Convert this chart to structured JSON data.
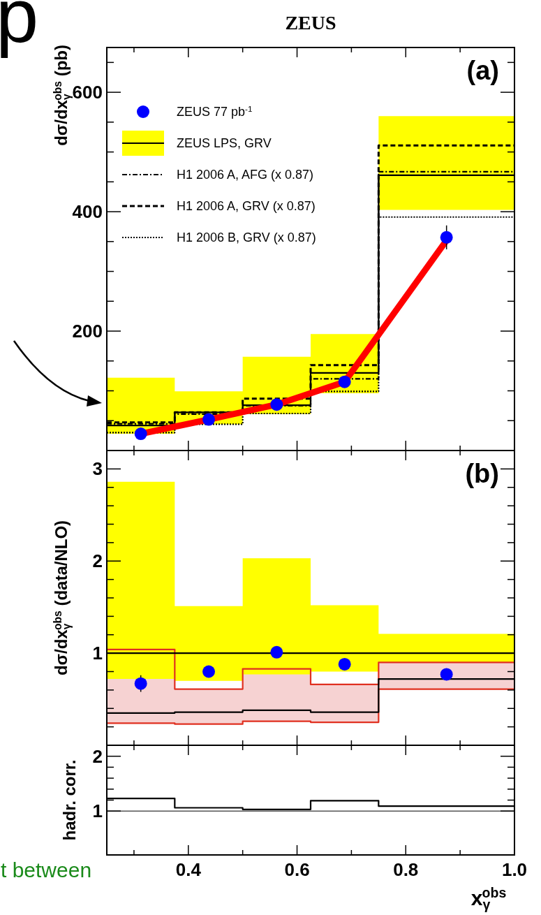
{
  "chart_data": [
    {
      "type": "step",
      "title": "ZEUS",
      "ylabel": "dσ/dx$_{γ}$$^{obs}$ (pb)",
      "xlim": [
        0.25,
        1.0
      ],
      "xticks": [
        {
          "value": 0.3,
          "label": null
        },
        0.4,
        {
          "value": 0.5,
          "label": null
        },
        0.6,
        {
          "value": 0.7,
          "label": null
        },
        0.8,
        {
          "value": 0.9,
          "label": null
        },
        1
      ],
      "ylim": [
        0,
        675
      ],
      "yticks": [
        {
          "value": 50,
          "label": null
        },
        {
          "value": 100,
          "label": null
        },
        {
          "value": 150,
          "label": null
        },
        200,
        {
          "value": 250,
          "label": null
        },
        {
          "value": 300,
          "label": null
        },
        {
          "value": 350,
          "label": null
        },
        400,
        {
          "value": 450,
          "label": null
        },
        {
          "value": 500,
          "label": null
        },
        {
          "value": 550,
          "label": null
        },
        600,
        {
          "value": 650,
          "label": null
        }
      ],
      "tick_labels": "y",
      "legend": "top left",
      "annotations": [
        "(a)",
        "p",
        "t between"
      ],
      "series": [
        {
          "type": "scatter",
          "name": "ZEUS 77 pb$^{-1}$",
          "color": "#0000ff",
          "marker": "circle",
          "x": [
            0.3125,
            0.4375,
            0.5625,
            0.6875,
            0.875
          ],
          "values": [
            28,
            52,
            77,
            115,
            357
          ],
          "errors": [
            null,
            null,
            null,
            null,
            20
          ]
        },
        {
          "type": "area",
          "color": "#ffff00",
          "x": [
            0.25,
            0.375,
            0.5,
            0.625,
            0.75,
            1.0
          ],
          "values": [
            null,
            null,
            null,
            null,
            null,
            null
          ],
          "lower": [
            28,
            44,
            61,
            96,
            403,
            403
          ],
          "upper": [
            122,
            99,
            157,
            195,
            560,
            560
          ]
        },
        {
          "name": "ZEUS LPS, GRV",
          "color": "#000000",
          "line_style": "solid",
          "x": [
            0.25,
            0.375,
            0.5,
            0.625,
            0.75,
            1.0
          ],
          "values": [
            42,
            64,
            76,
            130,
            461,
            461
          ]
        },
        {
          "name": "H1 2006 A, AFG (x 0.87)",
          "color": "#000000",
          "line_style": "dashdot",
          "x": [
            0.25,
            0.375,
            0.5,
            0.625,
            0.75,
            1.0
          ],
          "values": [
            45,
            61,
            75,
            120,
            467,
            467
          ]
        },
        {
          "name": "H1 2006 A, GRV (x 0.87)",
          "color": "#000000",
          "line_style": "dashed",
          "x": [
            0.25,
            0.375,
            0.5,
            0.625,
            0.75,
            1.0
          ],
          "values": [
            47,
            64,
            87,
            143,
            511,
            511
          ]
        },
        {
          "name": "H1 2006 B, GRV (x 0.87)",
          "color": "#000000",
          "line_style": "dotted",
          "x": [
            0.25,
            0.375,
            0.5,
            0.625,
            0.75,
            1.0
          ],
          "values": [
            30,
            44,
            62,
            99,
            391,
            391
          ]
        },
        {
          "type": "line",
          "color": "#ff0000",
          "x": [
            0.3125,
            0.4375,
            0.5625,
            0.6875,
            0.875
          ],
          "values": [
            28,
            52,
            77,
            115,
            352
          ]
        }
      ]
    },
    {
      "type": "step",
      "ylabel": "dσ/dx$_{γ}$$^{obs}$ (data/NLO)",
      "xlim": [
        0.25,
        1.0
      ],
      "xticks": [
        {
          "value": 0.3,
          "label": null
        },
        0.4,
        {
          "value": 0.5,
          "label": null
        },
        0.6,
        {
          "value": 0.7,
          "label": null
        },
        0.8,
        {
          "value": 0.9,
          "label": null
        },
        1
      ],
      "ylim": [
        0,
        3.2
      ],
      "yticks": [
        {
          "value": 0.2,
          "label": null
        },
        {
          "value": 0.4,
          "label": null
        },
        {
          "value": 0.6,
          "label": null
        },
        {
          "value": 0.8,
          "label": null
        },
        1,
        {
          "value": 1.2,
          "label": null
        },
        {
          "value": 1.4,
          "label": null
        },
        {
          "value": 1.6,
          "label": null
        },
        {
          "value": 1.8,
          "label": null
        },
        2,
        {
          "value": 2.2,
          "label": null
        },
        {
          "value": 2.4,
          "label": null
        },
        {
          "value": 2.6,
          "label": null
        },
        {
          "value": 2.8,
          "label": null
        },
        3
      ],
      "tick_labels": "y",
      "annotations": [
        "(b)"
      ],
      "series": [
        {
          "type": "area",
          "color": "#f6d2d2",
          "x": [
            0.25,
            0.375,
            0.5,
            0.625,
            0.75,
            1.0
          ],
          "values": [
            null,
            null,
            null,
            null,
            null,
            null
          ],
          "lower": [
            0.24,
            0.23,
            0.26,
            0.25,
            0.61,
            0.61
          ],
          "upper": [
            1.04,
            0.61,
            0.83,
            0.66,
            0.9,
            0.9
          ]
        },
        {
          "type": "area",
          "color": "#ffff00",
          "x": [
            0.25,
            0.375,
            0.5,
            0.625,
            0.75,
            1.0
          ],
          "values": [
            null,
            null,
            null,
            null,
            null,
            null
          ],
          "lower": [
            0.72,
            0.7,
            0.77,
            0.8,
            0.9,
            0.9
          ],
          "upper": [
            2.86,
            1.51,
            2.03,
            1.52,
            1.21,
            1.21
          ]
        },
        {
          "color": "#e03020",
          "line_style": "solid",
          "x": [
            0.25,
            0.375,
            0.5,
            0.625,
            0.75,
            1.0
          ],
          "values": [
            1.04,
            0.61,
            0.83,
            0.66,
            0.9,
            0.9
          ]
        },
        {
          "color": "#e03020",
          "line_style": "solid",
          "x": [
            0.25,
            0.375,
            0.5,
            0.625,
            0.75,
            1.0
          ],
          "values": [
            0.24,
            0.23,
            0.26,
            0.25,
            0.61,
            0.61
          ]
        },
        {
          "color": "#000000",
          "line_style": "solid",
          "x": [
            0.25,
            0.375,
            0.5,
            0.625,
            0.75,
            1.0
          ],
          "values": [
            1,
            1,
            1,
            1,
            1,
            1
          ]
        },
        {
          "color": "#000000",
          "line_style": "solid",
          "x": [
            0.25,
            0.375,
            0.5,
            0.625,
            0.75,
            1.0
          ],
          "values": [
            0.35,
            0.36,
            0.38,
            0.36,
            0.72,
            0.72
          ]
        },
        {
          "type": "scatter",
          "color": "#0000ff",
          "marker": "circle",
          "x": [
            0.3125,
            0.4375,
            0.5625,
            0.6875,
            0.875
          ],
          "values": [
            0.67,
            0.8,
            1.01,
            0.88,
            0.77
          ],
          "errors": [
            0.09,
            null,
            null,
            null,
            null
          ]
        }
      ]
    },
    {
      "type": "step",
      "ylabel": "hadr. corr.",
      "xlabel": "x$_{γ}$$^{obs}$",
      "xlim": [
        0.25,
        1.0
      ],
      "xticks": [
        {
          "value": 0.3,
          "label": null
        },
        0.4,
        {
          "value": 0.5,
          "label": null
        },
        0.6,
        {
          "value": 0.7,
          "label": null
        },
        0.8,
        {
          "value": 0.9,
          "label": null
        },
        {
          "value": 1.0,
          "label": "1.0"
        }
      ],
      "ylim": [
        0.2,
        2.2
      ],
      "yticks": [
        1,
        {
          "value": 1.2,
          "label": null
        },
        {
          "value": 1.4,
          "label": null
        },
        {
          "value": 1.6,
          "label": null
        },
        {
          "value": 1.8,
          "label": null
        },
        2
      ],
      "ref_lines": [
        {
          "axis": "y",
          "value": 1,
          "color": "#555555"
        }
      ],
      "series": [
        {
          "color": "#000000",
          "line_style": "solid",
          "x": [
            0.25,
            0.375,
            0.5,
            0.625,
            0.75,
            1.0
          ],
          "values": [
            1.23,
            1.06,
            1.03,
            1.19,
            1.09,
            1.09
          ]
        }
      ]
    }
  ]
}
